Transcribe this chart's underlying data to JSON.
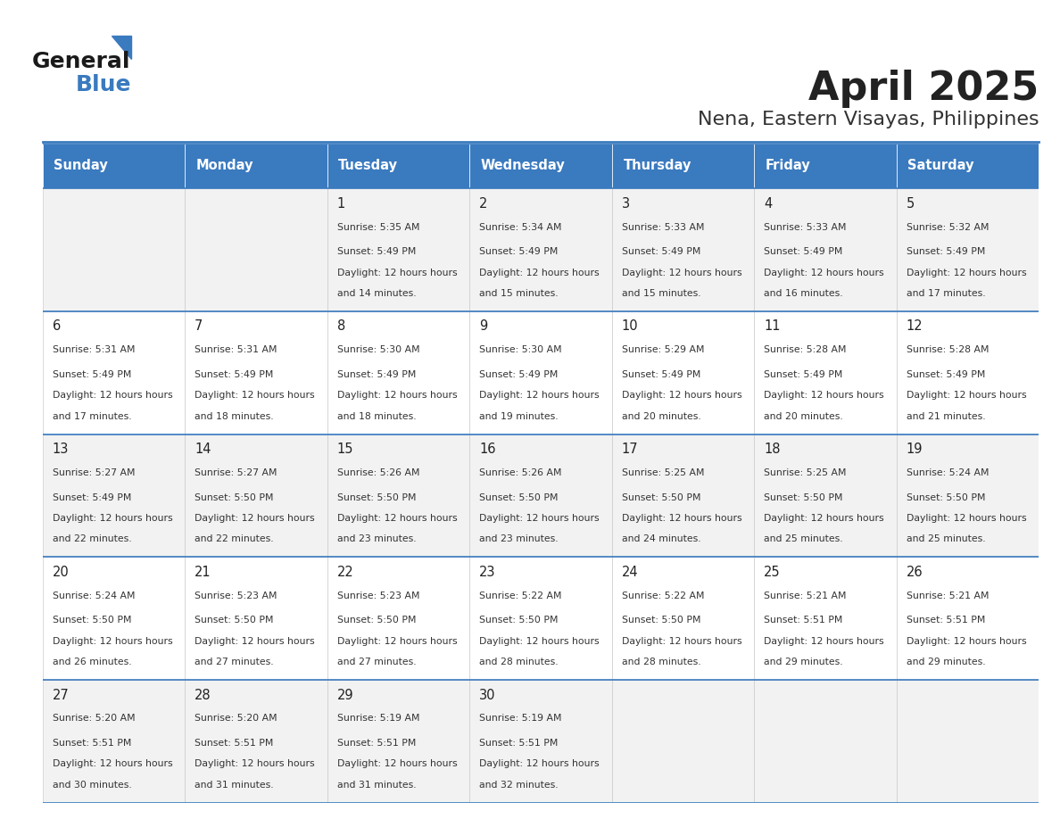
{
  "title": "April 2025",
  "subtitle": "Nena, Eastern Visayas, Philippines",
  "days_of_week": [
    "Sunday",
    "Monday",
    "Tuesday",
    "Wednesday",
    "Thursday",
    "Friday",
    "Saturday"
  ],
  "header_bg": "#3a7abf",
  "header_text": "#ffffff",
  "row_bg_even": "#f2f2f2",
  "row_bg_odd": "#ffffff",
  "border_color": "#3a7abf",
  "text_color": "#333333",
  "day_num_color": "#222222",
  "title_color": "#222222",
  "subtitle_color": "#333333",
  "cells": [
    {
      "day": 0,
      "week": 0,
      "date": "",
      "sunrise": "",
      "sunset": "",
      "daylight": ""
    },
    {
      "day": 1,
      "week": 0,
      "date": "",
      "sunrise": "",
      "sunset": "",
      "daylight": ""
    },
    {
      "day": 2,
      "week": 0,
      "date": "1",
      "sunrise": "5:35 AM",
      "sunset": "5:49 PM",
      "daylight": "12 hours and 14 minutes."
    },
    {
      "day": 3,
      "week": 0,
      "date": "2",
      "sunrise": "5:34 AM",
      "sunset": "5:49 PM",
      "daylight": "12 hours and 15 minutes."
    },
    {
      "day": 4,
      "week": 0,
      "date": "3",
      "sunrise": "5:33 AM",
      "sunset": "5:49 PM",
      "daylight": "12 hours and 15 minutes."
    },
    {
      "day": 5,
      "week": 0,
      "date": "4",
      "sunrise": "5:33 AM",
      "sunset": "5:49 PM",
      "daylight": "12 hours and 16 minutes."
    },
    {
      "day": 6,
      "week": 0,
      "date": "5",
      "sunrise": "5:32 AM",
      "sunset": "5:49 PM",
      "daylight": "12 hours and 17 minutes."
    },
    {
      "day": 0,
      "week": 1,
      "date": "6",
      "sunrise": "5:31 AM",
      "sunset": "5:49 PM",
      "daylight": "12 hours and 17 minutes."
    },
    {
      "day": 1,
      "week": 1,
      "date": "7",
      "sunrise": "5:31 AM",
      "sunset": "5:49 PM",
      "daylight": "12 hours and 18 minutes."
    },
    {
      "day": 2,
      "week": 1,
      "date": "8",
      "sunrise": "5:30 AM",
      "sunset": "5:49 PM",
      "daylight": "12 hours and 18 minutes."
    },
    {
      "day": 3,
      "week": 1,
      "date": "9",
      "sunrise": "5:30 AM",
      "sunset": "5:49 PM",
      "daylight": "12 hours and 19 minutes."
    },
    {
      "day": 4,
      "week": 1,
      "date": "10",
      "sunrise": "5:29 AM",
      "sunset": "5:49 PM",
      "daylight": "12 hours and 20 minutes."
    },
    {
      "day": 5,
      "week": 1,
      "date": "11",
      "sunrise": "5:28 AM",
      "sunset": "5:49 PM",
      "daylight": "12 hours and 20 minutes."
    },
    {
      "day": 6,
      "week": 1,
      "date": "12",
      "sunrise": "5:28 AM",
      "sunset": "5:49 PM",
      "daylight": "12 hours and 21 minutes."
    },
    {
      "day": 0,
      "week": 2,
      "date": "13",
      "sunrise": "5:27 AM",
      "sunset": "5:49 PM",
      "daylight": "12 hours and 22 minutes."
    },
    {
      "day": 1,
      "week": 2,
      "date": "14",
      "sunrise": "5:27 AM",
      "sunset": "5:50 PM",
      "daylight": "12 hours and 22 minutes."
    },
    {
      "day": 2,
      "week": 2,
      "date": "15",
      "sunrise": "5:26 AM",
      "sunset": "5:50 PM",
      "daylight": "12 hours and 23 minutes."
    },
    {
      "day": 3,
      "week": 2,
      "date": "16",
      "sunrise": "5:26 AM",
      "sunset": "5:50 PM",
      "daylight": "12 hours and 23 minutes."
    },
    {
      "day": 4,
      "week": 2,
      "date": "17",
      "sunrise": "5:25 AM",
      "sunset": "5:50 PM",
      "daylight": "12 hours and 24 minutes."
    },
    {
      "day": 5,
      "week": 2,
      "date": "18",
      "sunrise": "5:25 AM",
      "sunset": "5:50 PM",
      "daylight": "12 hours and 25 minutes."
    },
    {
      "day": 6,
      "week": 2,
      "date": "19",
      "sunrise": "5:24 AM",
      "sunset": "5:50 PM",
      "daylight": "12 hours and 25 minutes."
    },
    {
      "day": 0,
      "week": 3,
      "date": "20",
      "sunrise": "5:24 AM",
      "sunset": "5:50 PM",
      "daylight": "12 hours and 26 minutes."
    },
    {
      "day": 1,
      "week": 3,
      "date": "21",
      "sunrise": "5:23 AM",
      "sunset": "5:50 PM",
      "daylight": "12 hours and 27 minutes."
    },
    {
      "day": 2,
      "week": 3,
      "date": "22",
      "sunrise": "5:23 AM",
      "sunset": "5:50 PM",
      "daylight": "12 hours and 27 minutes."
    },
    {
      "day": 3,
      "week": 3,
      "date": "23",
      "sunrise": "5:22 AM",
      "sunset": "5:50 PM",
      "daylight": "12 hours and 28 minutes."
    },
    {
      "day": 4,
      "week": 3,
      "date": "24",
      "sunrise": "5:22 AM",
      "sunset": "5:50 PM",
      "daylight": "12 hours and 28 minutes."
    },
    {
      "day": 5,
      "week": 3,
      "date": "25",
      "sunrise": "5:21 AM",
      "sunset": "5:51 PM",
      "daylight": "12 hours and 29 minutes."
    },
    {
      "day": 6,
      "week": 3,
      "date": "26",
      "sunrise": "5:21 AM",
      "sunset": "5:51 PM",
      "daylight": "12 hours and 29 minutes."
    },
    {
      "day": 0,
      "week": 4,
      "date": "27",
      "sunrise": "5:20 AM",
      "sunset": "5:51 PM",
      "daylight": "12 hours and 30 minutes."
    },
    {
      "day": 1,
      "week": 4,
      "date": "28",
      "sunrise": "5:20 AM",
      "sunset": "5:51 PM",
      "daylight": "12 hours and 31 minutes."
    },
    {
      "day": 2,
      "week": 4,
      "date": "29",
      "sunrise": "5:19 AM",
      "sunset": "5:51 PM",
      "daylight": "12 hours and 31 minutes."
    },
    {
      "day": 3,
      "week": 4,
      "date": "30",
      "sunrise": "5:19 AM",
      "sunset": "5:51 PM",
      "daylight": "12 hours and 32 minutes."
    },
    {
      "day": 4,
      "week": 4,
      "date": "",
      "sunrise": "",
      "sunset": "",
      "daylight": ""
    },
    {
      "day": 5,
      "week": 4,
      "date": "",
      "sunrise": "",
      "sunset": "",
      "daylight": ""
    },
    {
      "day": 6,
      "week": 4,
      "date": "",
      "sunrise": "",
      "sunset": "",
      "daylight": ""
    }
  ],
  "num_weeks": 5,
  "logo_text_general": "General",
  "logo_text_blue": "Blue",
  "logo_triangle_color": "#3a7abf"
}
